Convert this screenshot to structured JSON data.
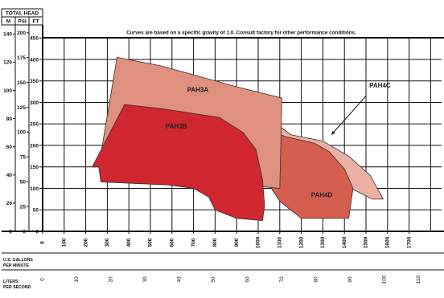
{
  "chart_data": {
    "type": "area",
    "note": "Curves are based on a specific gravity of 1.0. Consult factory for other performance conditions.",
    "head_header": "TOTAL HEAD",
    "unit_m": "M",
    "unit_psi": "PSI",
    "unit_ft": "FT",
    "flow_gpm_label": [
      "U.S. GALLONS",
      "PER MINUTE"
    ],
    "flow_lps_label": [
      "LITERS",
      "PER SECOND"
    ],
    "xlim_gpm": [
      0,
      1800
    ],
    "ylim_ft": [
      0,
      500
    ],
    "grid": true,
    "ticks": {
      "gpm": [
        "0",
        "100",
        "200",
        "300",
        "400",
        "500",
        "600",
        "700",
        "800",
        "900",
        "1000",
        "1100",
        "1200",
        "1300",
        "1400",
        "1500",
        "1600",
        "1700"
      ],
      "ft": [
        "0",
        "50",
        "100",
        "150",
        "200",
        "250",
        "300",
        "350",
        "400",
        "450"
      ],
      "m": [
        "0",
        "20",
        "40",
        "60",
        "80",
        "100",
        "120",
        "140"
      ],
      "psi": [
        "0",
        "25",
        "50",
        "75",
        "100",
        "125",
        "150",
        "175",
        "200"
      ],
      "lps": [
        "0",
        "10",
        "20",
        "30",
        "40",
        "50",
        "60",
        "70",
        "80",
        "90",
        "100",
        "110"
      ]
    },
    "series": [
      {
        "name": "PAH4C",
        "color": "#eab0a4",
        "label_gpm": 1565,
        "label_ft": 340,
        "outline": [
          [
            370,
            300
          ],
          [
            300,
            150
          ],
          [
            340,
            135
          ],
          [
            1000,
            110
          ],
          [
            1250,
            100
          ],
          [
            1390,
            110
          ],
          [
            1430,
            100
          ],
          [
            1530,
            75
          ],
          [
            1580,
            75
          ],
          [
            1520,
            130
          ],
          [
            1420,
            175
          ],
          [
            1300,
            210
          ],
          [
            1150,
            225
          ],
          [
            1010,
            280
          ],
          [
            370,
            300
          ]
        ]
      },
      {
        "name": "PAH4D",
        "color": "#d55e4e",
        "label_gpm": 1295,
        "label_ft": 85,
        "outline": [
          [
            370,
            300
          ],
          [
            290,
            150
          ],
          [
            310,
            135
          ],
          [
            760,
            115
          ],
          [
            1045,
            112
          ],
          [
            1100,
            70
          ],
          [
            1150,
            50
          ],
          [
            1200,
            30
          ],
          [
            1420,
            30
          ],
          [
            1440,
            100
          ],
          [
            1400,
            145
          ],
          [
            1330,
            185
          ],
          [
            1260,
            205
          ],
          [
            1130,
            220
          ],
          [
            900,
            260
          ],
          [
            370,
            300
          ]
        ]
      },
      {
        "name": "PAH3A",
        "color": "#e0907e",
        "label_gpm": 720,
        "label_ft": 330,
        "outline": [
          [
            345,
            405
          ],
          [
            260,
            150
          ],
          [
            290,
            140
          ],
          [
            1100,
            100
          ],
          [
            1110,
            310
          ],
          [
            910,
            335
          ],
          [
            550,
            385
          ],
          [
            345,
            405
          ]
        ]
      },
      {
        "name": "PAH3B",
        "color": "#cf2630",
        "label_gpm": 620,
        "label_ft": 245,
        "outline": [
          [
            380,
            295
          ],
          [
            230,
            150
          ],
          [
            260,
            150
          ],
          [
            270,
            115
          ],
          [
            580,
            108
          ],
          [
            700,
            100
          ],
          [
            770,
            80
          ],
          [
            800,
            50
          ],
          [
            900,
            30
          ],
          [
            1020,
            25
          ],
          [
            1030,
            60
          ],
          [
            1020,
            120
          ],
          [
            990,
            190
          ],
          [
            930,
            230
          ],
          [
            820,
            265
          ],
          [
            560,
            285
          ],
          [
            380,
            295
          ]
        ]
      }
    ],
    "callout": {
      "from_gpm": 1500,
      "from_ft": 315,
      "to_gpm": 1340,
      "to_ft": 225
    }
  }
}
